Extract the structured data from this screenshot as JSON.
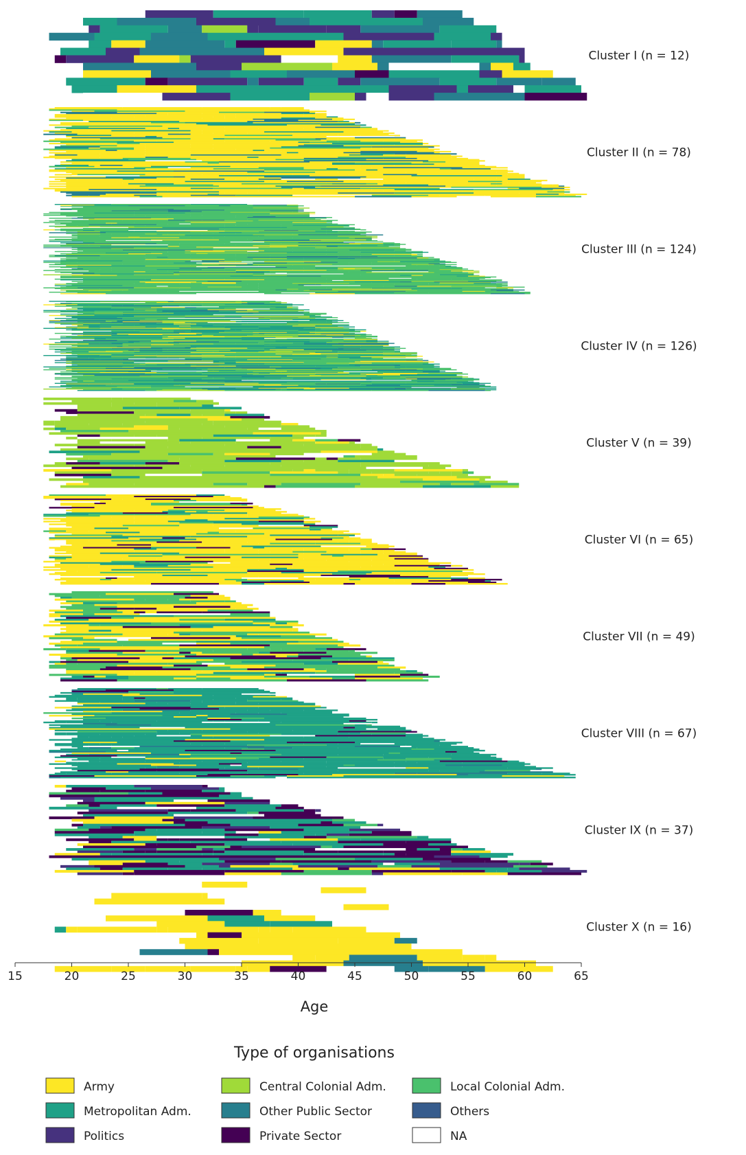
{
  "chart_data": {
    "type": "sequence_index_plot",
    "xlabel": "Age",
    "xlim": [
      15,
      65
    ],
    "x_ticks": [
      15,
      20,
      25,
      30,
      35,
      40,
      45,
      50,
      55,
      60,
      65
    ],
    "legend_title": "Type of organisations",
    "legend_position": "bottom",
    "categories": [
      {
        "key": "army",
        "name": "Army",
        "color": "#fde725"
      },
      {
        "key": "central",
        "name": "Central Colonial Adm.",
        "color": "#a0da39"
      },
      {
        "key": "local",
        "name": "Local Colonial Adm.",
        "color": "#4ac16d"
      },
      {
        "key": "metro",
        "name": "Metropolitan Adm.",
        "color": "#1fa187"
      },
      {
        "key": "otherpub",
        "name": "Other Public Sector",
        "color": "#277f8e"
      },
      {
        "key": "others",
        "name": "Others",
        "color": "#365c8d"
      },
      {
        "key": "politics",
        "name": "Politics",
        "color": "#46327e"
      },
      {
        "key": "private",
        "name": "Private Sector",
        "color": "#440154"
      },
      {
        "key": "na",
        "name": "NA",
        "color": "#ffffff"
      }
    ],
    "clusters": [
      {
        "label": "Cluster I (n = 12)",
        "n": 12,
        "min_start": 18,
        "max_start": 22,
        "min_end": 55,
        "max_end": 65.5,
        "main": [
          "politics",
          "otherpub",
          "metro"
        ],
        "secondary": [
          "army",
          "central",
          "private"
        ]
      },
      {
        "label": "Cluster II (n = 78)",
        "n": 78,
        "min_start": 17.5,
        "max_start": 20,
        "min_end": 41,
        "max_end": 65.5,
        "main": [
          "army"
        ],
        "secondary": [
          "metro",
          "local",
          "otherpub"
        ]
      },
      {
        "label": "Cluster III (n = 124)",
        "n": 124,
        "min_start": 17.5,
        "max_start": 21,
        "min_end": 39,
        "max_end": 60.5,
        "main": [
          "local"
        ],
        "secondary": [
          "army",
          "metro",
          "central",
          "otherpub"
        ]
      },
      {
        "label": "Cluster IV (n = 126)",
        "n": 126,
        "min_start": 17.5,
        "max_start": 21,
        "min_end": 39,
        "max_end": 57.5,
        "main": [
          "local",
          "metro"
        ],
        "secondary": [
          "army",
          "otherpub",
          "central"
        ]
      },
      {
        "label": "Cluster V (n = 39)",
        "n": 39,
        "min_start": 17.5,
        "max_start": 21,
        "min_end": 31,
        "max_end": 59.5,
        "main": [
          "central"
        ],
        "secondary": [
          "local",
          "metro",
          "army",
          "private"
        ]
      },
      {
        "label": "Cluster VI (n = 65)",
        "n": 65,
        "min_start": 17.5,
        "max_start": 20,
        "min_end": 34,
        "max_end": 58.5,
        "main": [
          "army"
        ],
        "secondary": [
          "local",
          "metro",
          "private"
        ]
      },
      {
        "label": "Cluster VII (n = 49)",
        "n": 49,
        "min_start": 17.5,
        "max_start": 20,
        "min_end": 32,
        "max_end": 52.5,
        "main": [
          "local",
          "army"
        ],
        "secondary": [
          "metro",
          "private"
        ]
      },
      {
        "label": "Cluster VIII (n = 67)",
        "n": 67,
        "min_start": 17.5,
        "max_start": 21,
        "min_end": 36,
        "max_end": 64.5,
        "main": [
          "metro"
        ],
        "secondary": [
          "otherpub",
          "army",
          "local",
          "private"
        ]
      },
      {
        "label": "Cluster IX (n = 37)",
        "n": 37,
        "min_start": 17.5,
        "max_start": 22,
        "min_end": 32,
        "max_end": 65.5,
        "main": [
          "private",
          "metro"
        ],
        "secondary": [
          "army",
          "local",
          "politics"
        ]
      },
      {
        "label": "Cluster X (n = 16)",
        "n": 16,
        "min_start": 17.5,
        "max_start": 45,
        "min_end": 27,
        "max_end": 62.5,
        "main": [
          "army"
        ],
        "secondary": [
          "metro",
          "otherpub",
          "private"
        ]
      }
    ]
  }
}
